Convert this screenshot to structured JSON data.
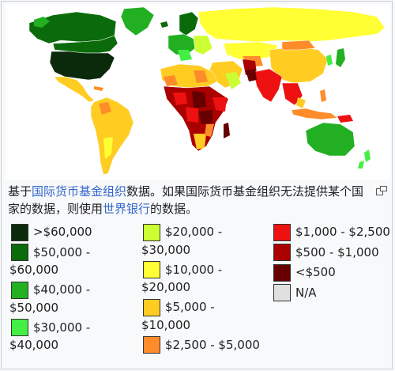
{
  "caption": {
    "part1": "基于",
    "link1": "国际货币基金组织",
    "part2": "数据。如果国际货币基金组织无法提供某个国家的数据，则使用",
    "link2": "世界银行",
    "part3": "的数据。"
  },
  "legend": {
    "col1": [
      {
        "label": ">$60,000",
        "color": "#0b2a0b"
      },
      {
        "label": "$50,000 - $60,000",
        "color": "#0b6b0b"
      },
      {
        "label": "$40,000 - $50,000",
        "color": "#22b022"
      },
      {
        "label": "$30,000 - $40,000",
        "color": "#44ee44"
      }
    ],
    "col2": [
      {
        "label": "$20,000 - $30,000",
        "color": "#ccff33"
      },
      {
        "label": "$10,000 - $20,000",
        "color": "#ffff33"
      },
      {
        "label": "$5,000 - $10,000",
        "color": "#ffcc22"
      },
      {
        "label": "$2,500 - $5,000",
        "color": "#ff8c2a"
      }
    ],
    "col3": [
      {
        "label": "$1,000 - $2,500",
        "color": "#ee1111"
      },
      {
        "label": "$500 - $1,000",
        "color": "#aa0000"
      },
      {
        "label": "<$500",
        "color": "#660000"
      },
      {
        "label": "N/A",
        "color": "#e0e0e0"
      }
    ]
  },
  "icons": {
    "magnify": "magnify-icon"
  }
}
